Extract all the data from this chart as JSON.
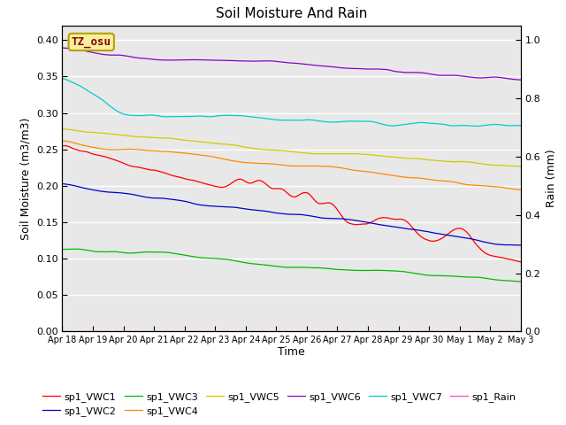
{
  "title": "Soil Moisture And Rain",
  "xlabel": "Time",
  "ylabel_left": "Soil Moisture (m3/m3)",
  "ylabel_right": "Rain (mm)",
  "ylim_left": [
    0.0,
    0.42
  ],
  "ylim_right": [
    0.0,
    1.05
  ],
  "xtick_labels": [
    "Apr 18",
    "Apr 19",
    "Apr 20",
    "Apr 21",
    "Apr 22",
    "Apr 23",
    "Apr 24",
    "Apr 25",
    "Apr 26",
    "Apr 27",
    "Apr 28",
    "Apr 29",
    "Apr 30",
    "May 1",
    "May 2",
    "May 3"
  ],
  "xtick_positions": [
    0,
    1,
    2,
    3,
    4,
    5,
    6,
    7,
    8,
    9,
    10,
    11,
    12,
    13,
    14,
    15
  ],
  "ytick_left": [
    0.0,
    0.05,
    0.1,
    0.15,
    0.2,
    0.25,
    0.3,
    0.35,
    0.4
  ],
  "ytick_right": [
    0.0,
    0.2,
    0.4,
    0.6,
    0.8,
    1.0
  ],
  "label_box": "TZ_osu",
  "label_box_bg": "#f5f0a0",
  "label_box_border": "#b8a000",
  "label_box_text_color": "#8B0000",
  "background_color": "#e8e8e8",
  "legend_labels": [
    "sp1_VWC1",
    "sp1_VWC2",
    "sp1_VWC3",
    "sp1_VWC4",
    "sp1_VWC5",
    "sp1_VWC6",
    "sp1_VWC7",
    "sp1_Rain"
  ],
  "legend_colors": [
    "#ff0000",
    "#0000cc",
    "#00bb00",
    "#ff8800",
    "#cccc00",
    "#8800cc",
    "#00cccc",
    "#ff44cc"
  ],
  "vwc1_color": "#ff0000",
  "vwc2_color": "#0000cc",
  "vwc3_color": "#00bb00",
  "vwc4_color": "#ff8800",
  "vwc5_color": "#cccc00",
  "vwc6_color": "#8800cc",
  "vwc7_color": "#00cccc",
  "rain_color": "#ff44cc"
}
